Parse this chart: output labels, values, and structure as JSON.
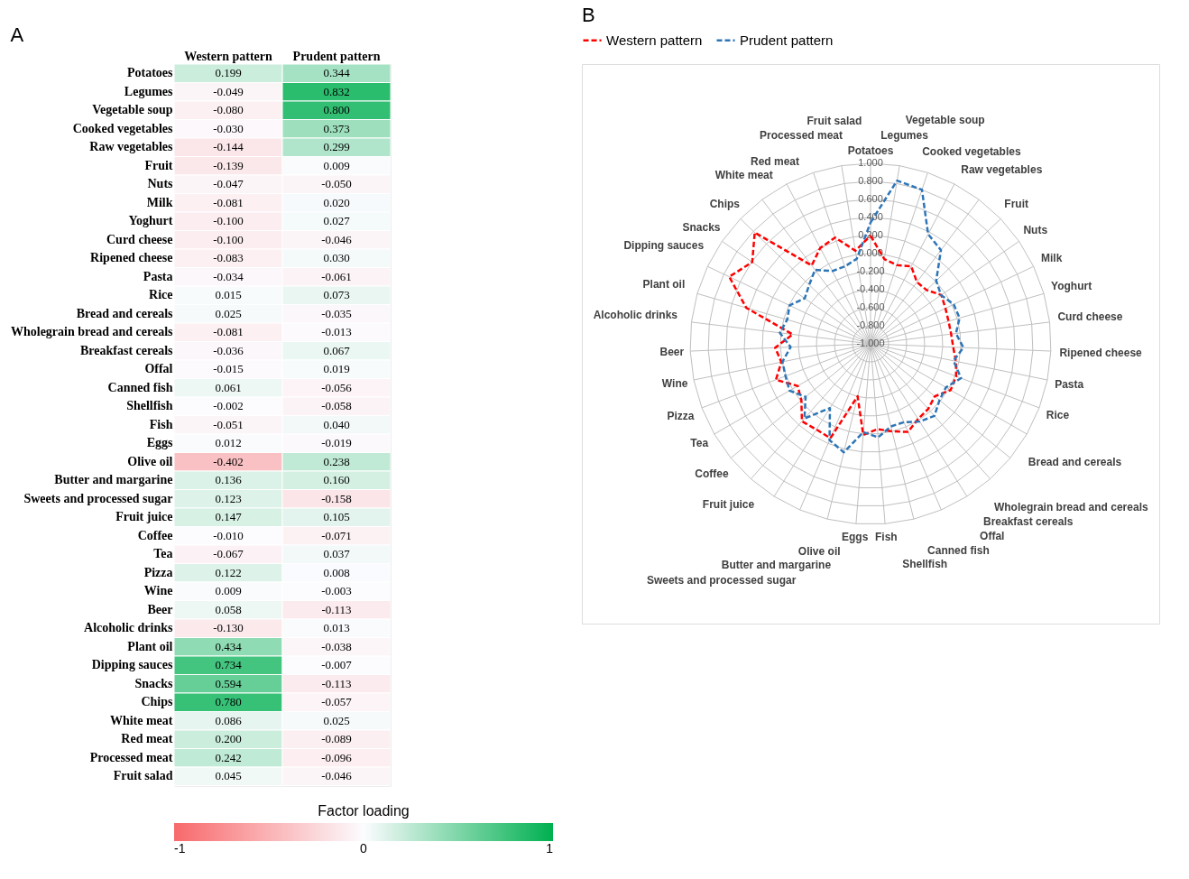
{
  "chart_data": [
    {
      "type": "heatmap",
      "title": "A",
      "categories": [
        "Western pattern",
        "Prudent pattern"
      ],
      "y_categories": [
        "Potatoes",
        "Legumes",
        "Vegetable soup",
        "Cooked vegetables",
        "Raw vegetables",
        "Fruit",
        "Nuts",
        "Milk",
        "Yoghurt",
        "Curd cheese",
        "Ripened cheese",
        "Pasta",
        "Rice",
        "Bread and cereals",
        "Wholegrain bread and cereals",
        "Breakfast cereals",
        "Offal",
        "Canned fish",
        "Shellfish",
        "Fish",
        "Eggs",
        "Olive oil",
        "Butter and margarine",
        "Sweets and processed sugar",
        "Fruit juice",
        "Coffee",
        "Tea",
        "Pizza",
        "Wine",
        "Beer",
        "Alcoholic drinks",
        "Plant oil",
        "Dipping sauces",
        "Snacks",
        "Chips",
        "White meat",
        "Red meat",
        "Processed meat",
        "Fruit salad"
      ],
      "cells": [
        [
          0.199,
          0.344
        ],
        [
          -0.049,
          0.832
        ],
        [
          -0.08,
          0.8
        ],
        [
          -0.03,
          0.373
        ],
        [
          -0.144,
          0.299
        ],
        [
          -0.139,
          0.009
        ],
        [
          -0.047,
          -0.05
        ],
        [
          -0.081,
          0.02
        ],
        [
          -0.1,
          0.027
        ],
        [
          -0.1,
          -0.046
        ],
        [
          -0.083,
          0.03
        ],
        [
          -0.034,
          -0.061
        ],
        [
          0.015,
          0.073
        ],
        [
          0.025,
          -0.035
        ],
        [
          -0.081,
          -0.013
        ],
        [
          -0.036,
          0.067
        ],
        [
          -0.015,
          0.019
        ],
        [
          0.061,
          -0.056
        ],
        [
          -0.002,
          -0.058
        ],
        [
          -0.051,
          0.04
        ],
        [
          0.012,
          -0.019
        ],
        [
          -0.402,
          0.238
        ],
        [
          0.136,
          0.16
        ],
        [
          0.123,
          -0.158
        ],
        [
          0.147,
          0.105
        ],
        [
          -0.01,
          -0.071
        ],
        [
          -0.067,
          0.037
        ],
        [
          0.122,
          0.008
        ],
        [
          0.009,
          -0.003
        ],
        [
          0.058,
          -0.113
        ],
        [
          -0.13,
          0.013
        ],
        [
          0.434,
          -0.038
        ],
        [
          0.734,
          -0.007
        ],
        [
          0.594,
          -0.113
        ],
        [
          0.78,
          -0.057
        ],
        [
          0.086,
          0.025
        ],
        [
          0.2,
          -0.089
        ],
        [
          0.242,
          -0.096
        ],
        [
          0.045,
          -0.046
        ]
      ],
      "cell_labels": [
        [
          "0.199",
          "0.344"
        ],
        [
          "-0.049",
          "0.832"
        ],
        [
          "-0.080",
          "0.800"
        ],
        [
          "-0.030",
          "0.373"
        ],
        [
          "-0.144",
          "0.299"
        ],
        [
          "-0.139",
          "0.009"
        ],
        [
          "-0.047",
          "-0.050"
        ],
        [
          "-0.081",
          "0.020"
        ],
        [
          "-0.100",
          "0.027"
        ],
        [
          "-0.100",
          "-0.046"
        ],
        [
          "-0.083",
          "0.030"
        ],
        [
          "-0.034",
          "-0.061"
        ],
        [
          "0.015",
          "0.073"
        ],
        [
          "0.025",
          "-0.035"
        ],
        [
          "-0.081",
          "-0.013"
        ],
        [
          "-0.036",
          "0.067"
        ],
        [
          "-0.015",
          "0.019"
        ],
        [
          "0.061",
          "-0.056"
        ],
        [
          "-0.002",
          "-0.058"
        ],
        [
          "-0.051",
          "0.040"
        ],
        [
          "0.012",
          "-0.019"
        ],
        [
          "-0.402",
          "0.238"
        ],
        [
          "0.136",
          "0.160"
        ],
        [
          "0.123",
          "-0.158"
        ],
        [
          "0.147",
          "0.105"
        ],
        [
          "-0.010",
          "-0.071"
        ],
        [
          "-0.067",
          "0.037"
        ],
        [
          "0.122",
          "0.008"
        ],
        [
          "0.009",
          "-0.003"
        ],
        [
          "0.058",
          "-0.113"
        ],
        [
          "-0.130",
          "0.013"
        ],
        [
          "0.434",
          "-0.038"
        ],
        [
          "0.734",
          "-0.007"
        ],
        [
          "0.594",
          "-0.113"
        ],
        [
          "0.780",
          "-0.057"
        ],
        [
          "0.086",
          "0.025"
        ],
        [
          "0.200",
          "-0.089"
        ],
        [
          "0.242",
          "-0.096"
        ],
        [
          "0.045",
          "-0.046"
        ]
      ],
      "clabel": "Factor loading",
      "clim": [
        -1,
        1
      ],
      "cticks": [
        -1,
        0,
        1
      ],
      "data_labels": true
    },
    {
      "type": "radar",
      "title": "B",
      "categories": [
        "Potatoes",
        "Legumes",
        "Vegetable soup",
        "Cooked vegetables",
        "Raw vegetables",
        "Fruit",
        "Nuts",
        "Milk",
        "Yoghurt",
        "Curd cheese",
        "Ripened cheese",
        "Pasta",
        "Rice",
        "Bread and cereals",
        "Wholegrain bread and cereals",
        "Breakfast cereals",
        "Offal",
        "Canned fish",
        "Shellfish",
        "Fish",
        "Eggs",
        "Olive oil",
        "Butter and margarine",
        "Sweets and processed sugar",
        "Fruit juice",
        "Coffee",
        "Tea",
        "Pizza",
        "Wine",
        "Beer",
        "Alcoholic drinks",
        "Plant oil",
        "Dipping sauces",
        "Snacks",
        "Chips",
        "White meat",
        "Red meat",
        "Processed meat",
        "Fruit salad"
      ],
      "series": [
        {
          "name": "Western pattern",
          "color": "#ff0000",
          "values": [
            0.199,
            -0.049,
            -0.08,
            -0.03,
            -0.144,
            -0.139,
            -0.047,
            -0.081,
            -0.1,
            -0.1,
            -0.083,
            -0.034,
            0.015,
            0.025,
            -0.081,
            -0.036,
            -0.015,
            0.061,
            -0.002,
            -0.051,
            0.012,
            -0.402,
            0.136,
            0.123,
            0.147,
            -0.01,
            -0.067,
            0.122,
            0.009,
            0.058,
            -0.13,
            0.434,
            0.734,
            0.594,
            0.78,
            0.086,
            0.2,
            0.242,
            0.045
          ]
        },
        {
          "name": "Prudent pattern",
          "color": "#2e75b6",
          "values": [
            0.344,
            0.832,
            0.8,
            0.373,
            0.299,
            0.009,
            -0.05,
            0.02,
            0.027,
            -0.046,
            0.03,
            -0.061,
            0.073,
            -0.035,
            -0.013,
            0.067,
            0.019,
            -0.056,
            -0.058,
            0.04,
            -0.019,
            0.238,
            0.16,
            -0.158,
            0.105,
            -0.071,
            0.037,
            0.008,
            -0.003,
            -0.113,
            0.013,
            -0.038,
            -0.007,
            -0.113,
            -0.057,
            0.025,
            -0.089,
            -0.096,
            -0.046
          ]
        }
      ],
      "ylim": [
        -1,
        1
      ],
      "yticks": [
        {
          "value": -1,
          "label": "-1.000"
        },
        {
          "value": -0.8,
          "label": "-0.800"
        },
        {
          "value": -0.6,
          "label": "-0.600"
        },
        {
          "value": -0.4,
          "label": "-0.400"
        },
        {
          "value": -0.2,
          "label": "-0.200"
        },
        {
          "value": 0,
          "label": "0.000"
        },
        {
          "value": 0.2,
          "label": "0.200"
        },
        {
          "value": 0.4,
          "label": "0.400"
        },
        {
          "value": 0.6,
          "label": "0.600"
        },
        {
          "value": 0.8,
          "label": "0.800"
        },
        {
          "value": 1,
          "label": "1.000"
        }
      ],
      "legend": "top",
      "line_style": "dashed",
      "marker": "none",
      "grid": true
    }
  ]
}
